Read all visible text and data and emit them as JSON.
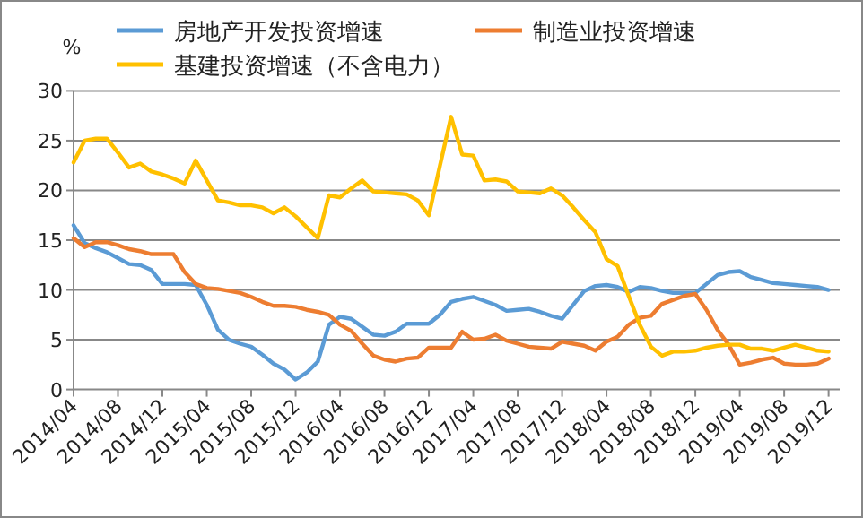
{
  "chart_data": {
    "type": "line",
    "categories": [
      "2014/04",
      null,
      null,
      null,
      "2014/08",
      null,
      null,
      null,
      "2014/12",
      null,
      null,
      null,
      "2015/04",
      null,
      null,
      null,
      "2015/08",
      null,
      null,
      null,
      "2015/12",
      null,
      null,
      null,
      "2016/04",
      null,
      null,
      null,
      "2016/08",
      null,
      null,
      null,
      "2016/12",
      null,
      null,
      null,
      "2017/04",
      null,
      null,
      null,
      "2017/08",
      null,
      null,
      null,
      "2017/12",
      null,
      null,
      null,
      "2018/04",
      null,
      null,
      null,
      "2018/08",
      null,
      null,
      null,
      "2018/12",
      null,
      null,
      null,
      "2019/04",
      null,
      null,
      null,
      "2019/08",
      null,
      null,
      null,
      "2019/12"
    ],
    "series": [
      {
        "name": "房地产开发投资增速",
        "color": "#5b9bd5",
        "values": [
          16.5,
          14.7,
          14.2,
          13.8,
          13.2,
          12.6,
          12.5,
          12.0,
          10.6,
          10.6,
          10.6,
          10.5,
          8.5,
          6.0,
          5.0,
          4.6,
          4.3,
          3.5,
          2.6,
          2.0,
          1.0,
          1.7,
          2.8,
          6.5,
          7.3,
          7.1,
          6.3,
          5.5,
          5.4,
          5.8,
          6.6,
          6.6,
          6.6,
          7.5,
          8.8,
          9.1,
          9.3,
          8.9,
          8.5,
          7.9,
          8.0,
          8.1,
          7.8,
          7.4,
          7.1,
          8.5,
          9.9,
          10.4,
          10.5,
          10.3,
          9.8,
          10.3,
          10.2,
          9.9,
          9.7,
          9.7,
          9.7,
          10.6,
          11.5,
          11.8,
          11.9,
          11.3,
          11.0,
          10.7,
          10.6,
          10.5,
          10.4,
          10.3,
          10.0
        ]
      },
      {
        "name": "制造业投资增速",
        "color": "#ed7d31",
        "values": [
          15.2,
          14.3,
          14.8,
          14.8,
          14.5,
          14.1,
          13.9,
          13.6,
          13.6,
          13.6,
          11.8,
          10.6,
          10.2,
          10.1,
          9.9,
          9.7,
          9.3,
          8.8,
          8.4,
          8.4,
          8.3,
          8.0,
          7.8,
          7.5,
          6.5,
          5.9,
          4.6,
          3.4,
          3.0,
          2.8,
          3.1,
          3.2,
          4.2,
          4.2,
          4.2,
          5.8,
          5.0,
          5.1,
          5.5,
          4.9,
          4.6,
          4.3,
          4.2,
          4.1,
          4.8,
          4.6,
          4.4,
          3.9,
          4.8,
          5.3,
          6.5,
          7.2,
          7.4,
          8.6,
          9.0,
          9.4,
          9.6,
          8.0,
          6.0,
          4.5,
          2.5,
          2.7,
          3.0,
          3.2,
          2.6,
          2.5,
          2.5,
          2.6,
          3.1
        ]
      },
      {
        "name": "基建投资增速（不含电力）",
        "color": "#ffc000",
        "values": [
          22.8,
          25.0,
          25.2,
          25.2,
          23.8,
          22.3,
          22.7,
          21.9,
          21.6,
          21.2,
          20.7,
          23.0,
          21.0,
          19.0,
          18.8,
          18.5,
          18.5,
          18.3,
          17.7,
          18.3,
          17.4,
          16.3,
          15.2,
          19.5,
          19.3,
          20.2,
          21.0,
          19.9,
          19.8,
          19.7,
          19.6,
          19.0,
          17.5,
          22.5,
          27.4,
          23.6,
          23.5,
          21.0,
          21.1,
          20.9,
          19.9,
          19.8,
          19.7,
          20.2,
          19.5,
          18.3,
          17.0,
          15.8,
          13.1,
          12.4,
          9.4,
          6.5,
          4.3,
          3.4,
          3.8,
          3.8,
          3.9,
          4.2,
          4.4,
          4.5,
          4.5,
          4.1,
          4.1,
          3.9,
          4.2,
          4.5,
          4.2,
          3.9,
          3.8
        ]
      }
    ],
    "ylabel": "%",
    "ylim": [
      0,
      30
    ],
    "yticks": [
      0,
      5,
      10,
      15,
      20,
      25,
      30
    ],
    "grid": "y",
    "legend": "top"
  }
}
